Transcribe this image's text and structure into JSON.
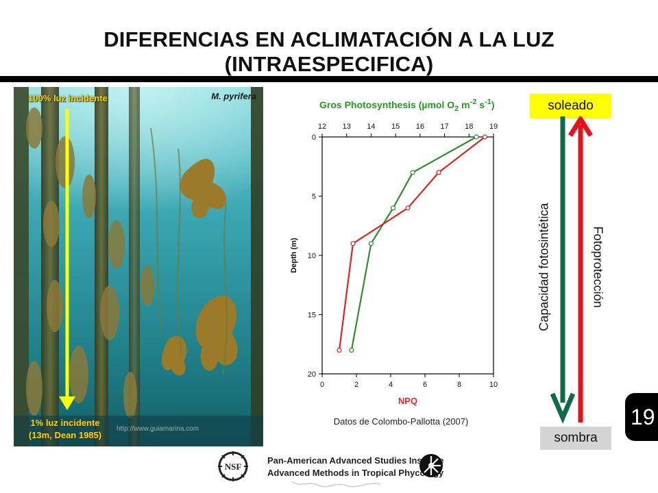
{
  "slide": {
    "title": "DIFERENCIAS EN ACLIMATACIÓN A LA LUZ (INTRAESPECIFICA)",
    "number": "19"
  },
  "photo": {
    "top_label": "100% luz incidente",
    "species": "M. pyrifera",
    "bottom_label_1": "1% luz incidente",
    "bottom_label_2": "(13m, Dean 1985)",
    "watermark": "http://www.guiamarina.com",
    "arrow_color": "#ffff00"
  },
  "chart_data": {
    "type": "line",
    "title": "Gros Photosynthesis (µmol O2 m-2 s-1)",
    "title_parts": {
      "main": "Gros Photosynthesis (",
      "mu": "µ",
      "mol": "mol O",
      "sub": "2",
      "m": " m",
      "exp1": "-2",
      "s": " s",
      "exp2": "-1",
      "close": ")"
    },
    "top_axis_ticks": [
      "12",
      "13",
      "14",
      "15",
      "16",
      "17",
      "18",
      "19"
    ],
    "top_axis_range": [
      12,
      19
    ],
    "xlabel": "NPQ",
    "xlim": [
      0,
      10
    ],
    "x_ticks": [
      "0",
      "2",
      "4",
      "6",
      "8",
      "10"
    ],
    "ylabel": "Depth (m)",
    "ylim": [
      20,
      0
    ],
    "y_ticks": [
      "0",
      "5",
      "10",
      "15",
      "20"
    ],
    "series": [
      {
        "color": "#2e8b2e",
        "axis": "top",
        "points": [
          [
            18.3,
            0
          ],
          [
            15.7,
            3
          ],
          [
            14.9,
            6
          ],
          [
            14.0,
            9
          ],
          [
            13.2,
            18
          ]
        ]
      },
      {
        "color": "#e02020",
        "axis": "bottom",
        "points": [
          [
            9.5,
            0
          ],
          [
            6.8,
            3
          ],
          [
            5.0,
            6
          ],
          [
            1.8,
            9
          ],
          [
            1.0,
            18
          ]
        ]
      }
    ],
    "source": "Datos de Colombo-Pallotta (2007)"
  },
  "gradient": {
    "top_label": "soleado",
    "bottom_label": "sombra",
    "left_label": "Capacidad fotosintética",
    "right_label": "Fotoprotección",
    "sunny_color": "#ffff00",
    "shade_color": "#d4d4d4",
    "green_arrow_color": "#0f6b45",
    "red_arrow_color": "#e8101a"
  },
  "footer": {
    "logo_left": "NSF",
    "line1": "Pan-American Advanced Studies Institute",
    "line2": "Advanced Methods in Tropical Phycology"
  }
}
